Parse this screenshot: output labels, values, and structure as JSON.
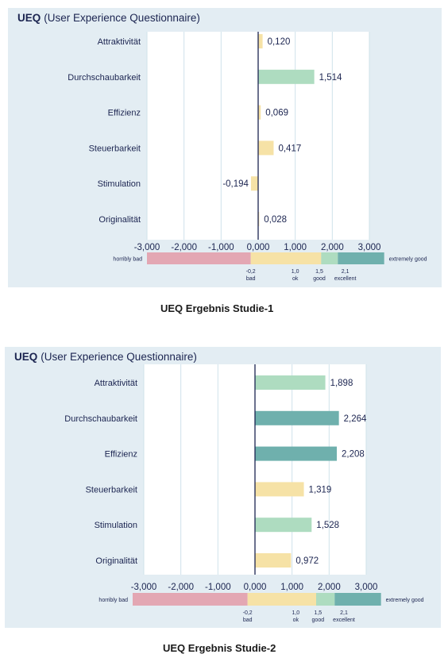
{
  "charts": [
    {
      "title_bold": "UEQ",
      "title_rest": "(User Experience Questionnaire)",
      "caption": "UEQ Ergebnis Studie-1"
    },
    {
      "title_bold": "UEQ",
      "title_rest": "(User Experience Questionnaire)",
      "caption": "UEQ Ergebnis Studie-2"
    }
  ],
  "colors": {
    "bad": "#e3a7b3",
    "ok": "#f6e2a6",
    "good": "#aedcc0",
    "excellent": "#6fb0ad",
    "axis": "#1b2450",
    "grid": "#cfe2ea",
    "text": "#1b2450"
  },
  "chart_data": [
    {
      "type": "bar",
      "orientation": "horizontal",
      "title": "UEQ (User Experience Questionnaire)",
      "categories": [
        "Attraktivität",
        "Durchschaubarkeit",
        "Effizienz",
        "Steuerbarkeit",
        "Stimulation",
        "Originalität"
      ],
      "values": [
        0.12,
        1.514,
        0.069,
        0.417,
        -0.194,
        0.028
      ],
      "value_labels": [
        "0,120",
        "1,514",
        "0,069",
        "0,417",
        "-0,194",
        "0,028"
      ],
      "bar_colors": [
        "ok",
        "good",
        "ok",
        "ok",
        "ok",
        "ok"
      ],
      "xlim": [
        -3,
        3
      ],
      "xticks": [
        "-3,000",
        "-2,000",
        "-1,000",
        "0,000",
        "1,000",
        "2,000",
        "3,000"
      ],
      "grid": true,
      "benchmark": {
        "segments": [
          {
            "from": -3,
            "to": -0.2,
            "color": "bad"
          },
          {
            "from": -0.2,
            "to": 1.7,
            "color": "ok"
          },
          {
            "from": 1.7,
            "to": 2.15,
            "color": "good"
          },
          {
            "from": 2.15,
            "to": 3.4,
            "color": "excellent"
          }
        ],
        "left_label": "horribly bad",
        "right_label": "extremely good",
        "markers": [
          {
            "value": "-0,2",
            "label": "bad",
            "at": -0.2
          },
          {
            "value": "1,0",
            "label": "ok",
            "at": 1.0
          },
          {
            "value": "1,5",
            "label": "good",
            "at": 1.65
          },
          {
            "value": "2,1",
            "label": "excellent",
            "at": 2.35
          }
        ]
      },
      "caption": "UEQ Ergebnis Studie-1"
    },
    {
      "type": "bar",
      "orientation": "horizontal",
      "title": "UEQ (User Experience Questionnaire)",
      "categories": [
        "Attraktivität",
        "Durchschaubarkeit",
        "Effizienz",
        "Steuerbarkeit",
        "Stimulation",
        "Originalität"
      ],
      "values": [
        1.898,
        2.264,
        2.208,
        1.319,
        1.528,
        0.972
      ],
      "value_labels": [
        "1,898",
        "2,264",
        "2,208",
        "1,319",
        "1,528",
        "0,972"
      ],
      "bar_colors": [
        "good",
        "excellent",
        "excellent",
        "ok",
        "good",
        "ok"
      ],
      "xlim": [
        -3,
        3
      ],
      "xticks": [
        "-3,000",
        "-2,000",
        "-1,000",
        "0,000",
        "1,000",
        "2,000",
        "3,000"
      ],
      "grid": true,
      "benchmark": {
        "segments": [
          {
            "from": -3.3,
            "to": -0.2,
            "color": "bad"
          },
          {
            "from": -0.2,
            "to": 1.65,
            "color": "ok"
          },
          {
            "from": 1.65,
            "to": 2.15,
            "color": "good"
          },
          {
            "from": 2.15,
            "to": 3.4,
            "color": "excellent"
          }
        ],
        "left_label": "horribly bad",
        "right_label": "extremely good",
        "markers": [
          {
            "value": "-0,2",
            "label": "bad",
            "at": -0.2
          },
          {
            "value": "1,0",
            "label": "ok",
            "at": 1.1
          },
          {
            "value": "1,5",
            "label": "good",
            "at": 1.7
          },
          {
            "value": "2,1",
            "label": "excellent",
            "at": 2.4
          }
        ]
      },
      "caption": "UEQ Ergebnis Studie-2"
    }
  ]
}
